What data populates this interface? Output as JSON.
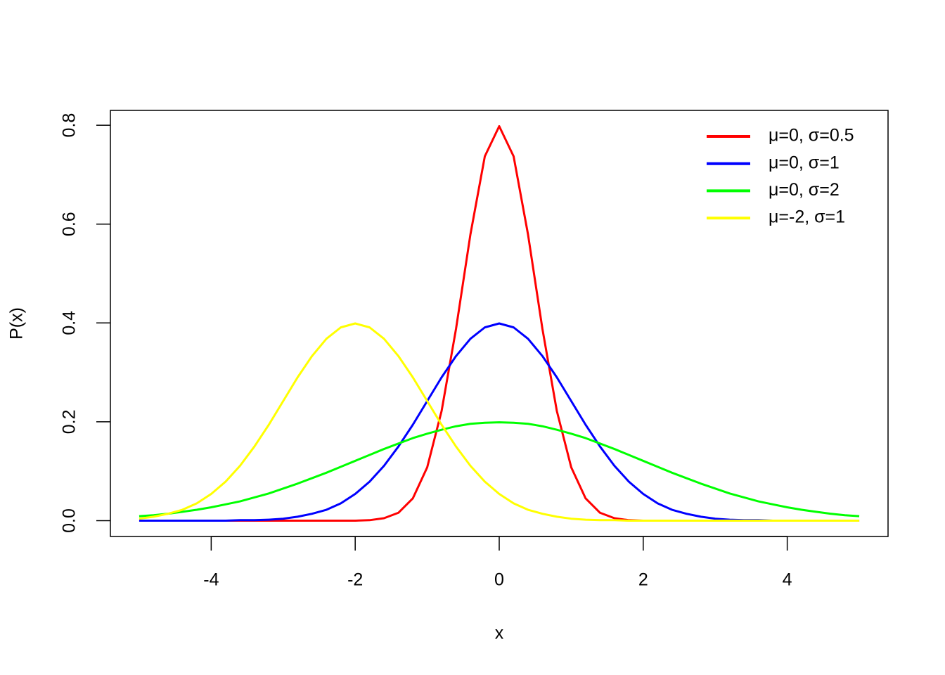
{
  "chart_data": {
    "type": "line",
    "xlabel": "x",
    "ylabel": "P(x)",
    "x": [
      -5,
      -4.8,
      -4.6,
      -4.4,
      -4.2,
      -4,
      -3.8,
      -3.6,
      -3.4,
      -3.2,
      -3,
      -2.8,
      -2.6,
      -2.4,
      -2.2,
      -2,
      -1.8,
      -1.6,
      -1.4,
      -1.2,
      -1,
      -0.8,
      -0.6,
      -0.4,
      -0.2,
      0,
      0.2,
      0.4,
      0.6,
      0.8,
      1,
      1.2,
      1.4,
      1.6,
      1.8,
      2,
      2.2,
      2.4,
      2.6,
      2.8,
      3,
      3.2,
      3.4,
      3.6,
      3.8,
      4,
      4.2,
      4.4,
      4.6,
      4.8,
      5
    ],
    "series": [
      {
        "name": "μ=0, σ=0.5",
        "color": "#ff0000",
        "values": [
          0,
          0,
          0,
          0,
          0,
          0,
          0,
          0,
          0,
          0,
          0,
          0,
          0,
          0,
          0,
          0,
          0.001,
          0.005,
          0.016,
          0.045,
          0.108,
          0.222,
          0.388,
          0.579,
          0.737,
          0.798,
          0.737,
          0.579,
          0.388,
          0.222,
          0.108,
          0.045,
          0.016,
          0.005,
          0.001,
          0,
          0,
          0,
          0,
          0,
          0,
          0,
          0,
          0,
          0,
          0,
          0,
          0,
          0,
          0,
          0
        ]
      },
      {
        "name": "μ=0, σ=1",
        "color": "#0000ff",
        "values": [
          0,
          0,
          0,
          0,
          0,
          0,
          0,
          0.001,
          0.001,
          0.002,
          0.004,
          0.008,
          0.014,
          0.022,
          0.035,
          0.054,
          0.079,
          0.111,
          0.15,
          0.194,
          0.242,
          0.29,
          0.333,
          0.368,
          0.391,
          0.399,
          0.391,
          0.368,
          0.333,
          0.29,
          0.242,
          0.194,
          0.15,
          0.111,
          0.079,
          0.054,
          0.035,
          0.022,
          0.014,
          0.008,
          0.004,
          0.002,
          0.001,
          0.001,
          0,
          0,
          0,
          0,
          0,
          0,
          0
        ]
      },
      {
        "name": "μ=0, σ=2",
        "color": "#00ff00",
        "values": [
          0.009,
          0.011,
          0.014,
          0.018,
          0.022,
          0.027,
          0.033,
          0.039,
          0.047,
          0.055,
          0.065,
          0.075,
          0.086,
          0.097,
          0.109,
          0.121,
          0.133,
          0.145,
          0.156,
          0.167,
          0.176,
          0.184,
          0.191,
          0.196,
          0.198,
          0.199,
          0.198,
          0.196,
          0.191,
          0.184,
          0.176,
          0.167,
          0.156,
          0.145,
          0.133,
          0.121,
          0.109,
          0.097,
          0.086,
          0.075,
          0.065,
          0.055,
          0.047,
          0.039,
          0.033,
          0.027,
          0.022,
          0.018,
          0.014,
          0.011,
          0.009
        ]
      },
      {
        "name": "μ=-2, σ=1",
        "color": "#ffff00",
        "values": [
          0.004,
          0.008,
          0.014,
          0.022,
          0.035,
          0.054,
          0.079,
          0.111,
          0.15,
          0.194,
          0.242,
          0.29,
          0.333,
          0.368,
          0.391,
          0.399,
          0.391,
          0.368,
          0.333,
          0.29,
          0.242,
          0.194,
          0.15,
          0.111,
          0.079,
          0.054,
          0.035,
          0.022,
          0.014,
          0.008,
          0.004,
          0.002,
          0.001,
          0.001,
          0,
          0,
          0,
          0,
          0,
          0,
          0,
          0,
          0,
          0,
          0,
          0,
          0,
          0,
          0,
          0,
          0
        ]
      }
    ],
    "xlim": [
      -5.4,
      5.4
    ],
    "xticks": [
      -4,
      -2,
      0,
      2,
      4
    ],
    "ylim": [
      -0.032,
      0.83
    ],
    "yticks": [
      {
        "value": 0,
        "label": "0.0"
      },
      0.2,
      0.4,
      0.6,
      0.8
    ],
    "legend": "topright",
    "grid": false
  }
}
